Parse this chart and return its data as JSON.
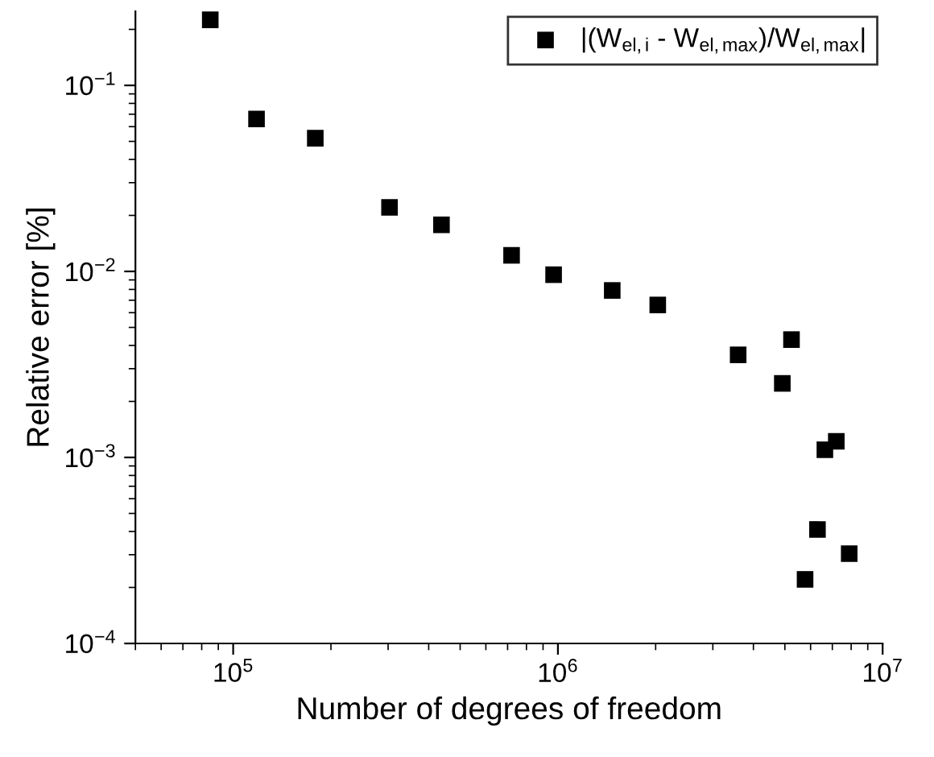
{
  "chart_data": {
    "type": "scatter",
    "xlabel": "Number of degrees of freedom",
    "ylabel": "Relative error [%]",
    "log": "xy",
    "xlim": [
      50000,
      10000000
    ],
    "ylim": [
      0.0001,
      0.25
    ],
    "xticks": [
      {
        "value": 100000,
        "label": "10$^{5}$"
      },
      {
        "value": 1000000,
        "label": "10$^{6}$"
      },
      {
        "value": 10000000,
        "label": "10$^{7}$"
      }
    ],
    "yticks": [
      {
        "value": 0.0001,
        "label": "10$^{−4}$"
      },
      {
        "value": 0.001,
        "label": "10$^{−3}$"
      },
      {
        "value": 0.01,
        "label": "10$^{−2}$"
      },
      {
        "value": 0.1,
        "label": "10$^{−1}$"
      }
    ],
    "grid": false,
    "legend": "top right",
    "marker": "square",
    "series": [
      {
        "name": "|(W$_{el,i}$ - W$_{el,max}$)/W$_{el,max}$|",
        "color": "#000000",
        "x": [
          85000,
          118000,
          179000,
          303000,
          438000,
          720000,
          970000,
          1470000,
          2030000,
          3590000,
          5240000,
          4910000,
          7200000,
          6640000,
          6300000,
          5770000,
          7890000
        ],
        "values": [
          0.225,
          0.066,
          0.052,
          0.0221,
          0.0178,
          0.0122,
          0.0096,
          0.0079,
          0.0066,
          0.00356,
          0.0043,
          0.0025,
          0.00122,
          0.0011,
          0.00041,
          0.000221,
          0.000304
        ]
      }
    ]
  }
}
